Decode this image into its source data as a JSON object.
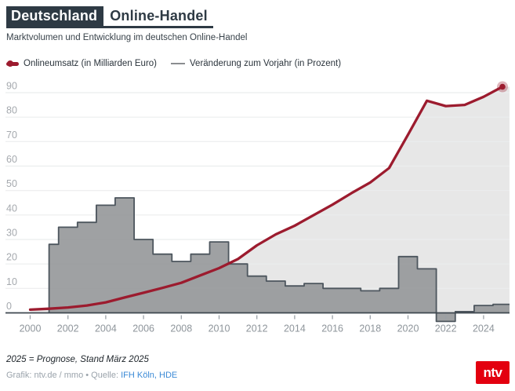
{
  "header": {
    "title_highlight": "Deutschland",
    "title_rest": "Online-Handel",
    "subtitle": "Marktvolumen und Entwicklung im deutschen Online-Handel"
  },
  "legend": {
    "items": [
      {
        "marker": "red-line-dot-icon",
        "label": "Onlineumsatz (in Milliarden Euro)"
      },
      {
        "marker": "gray-line-icon",
        "label": "Veränderung zum Vorjahr (in Prozent)"
      }
    ]
  },
  "chart_data": {
    "type": "line+step-area",
    "x": [
      2000,
      2001,
      2002,
      2003,
      2004,
      2005,
      2006,
      2007,
      2008,
      2009,
      2010,
      2011,
      2012,
      2013,
      2014,
      2015,
      2016,
      2017,
      2018,
      2019,
      2020,
      2021,
      2022,
      2023,
      2024,
      2025
    ],
    "x_tick_labels": [
      "2000",
      "2002",
      "2004",
      "2006",
      "2008",
      "2010",
      "2012",
      "2014",
      "2016",
      "2018",
      "2020",
      "2022",
      "2024"
    ],
    "y_ticks": [
      0,
      10,
      20,
      30,
      40,
      50,
      60,
      70,
      80,
      90
    ],
    "ylim": [
      -4,
      94
    ],
    "grid": true,
    "legend_position": "top",
    "series": [
      {
        "name": "Onlineumsatz (in Milliarden Euro)",
        "type": "line",
        "values": [
          1.3,
          1.7,
          2.2,
          3.0,
          4.3,
          6.3,
          8.2,
          10.2,
          12.3,
          15.3,
          18.3,
          22.0,
          27.6,
          32.1,
          35.6,
          39.9,
          44.2,
          48.9,
          53.3,
          59.2,
          72.8,
          86.7,
          84.5,
          85.0,
          88.3,
          92.4
        ],
        "end_dot_year": 2025,
        "end_dot_value": 92.4
      },
      {
        "name": "Veränderung zum Vorjahr (in Prozent)",
        "type": "step-area",
        "values": [
          null,
          28,
          35,
          37,
          44,
          47,
          30,
          24,
          21,
          24,
          29,
          20,
          15,
          13,
          11,
          12,
          10,
          10,
          9,
          10,
          23,
          18,
          -3.5,
          0.5,
          3,
          3.5
        ]
      }
    ]
  },
  "footer": {
    "note": "2025 = Prognose, Stand März 2025",
    "credit_prefix": "Grafik: ntv.de / mmo • Quelle: ",
    "source": "IFH Köln, HDE"
  },
  "brand": {
    "logo_text": "ntv"
  },
  "colors": {
    "title_box": "#2e3a44",
    "line": "#9c1b2e",
    "line_fill": "#e7e7e7",
    "area": "#97999b",
    "area_outline": "#4d565e",
    "grid": "#ebedee",
    "axis": "#3e474f",
    "tick": "#9aa1a7",
    "y_label": "#a5a9ae",
    "x_label": "#8e959b",
    "link": "#3b8ad6",
    "logo": "#e3000f"
  }
}
